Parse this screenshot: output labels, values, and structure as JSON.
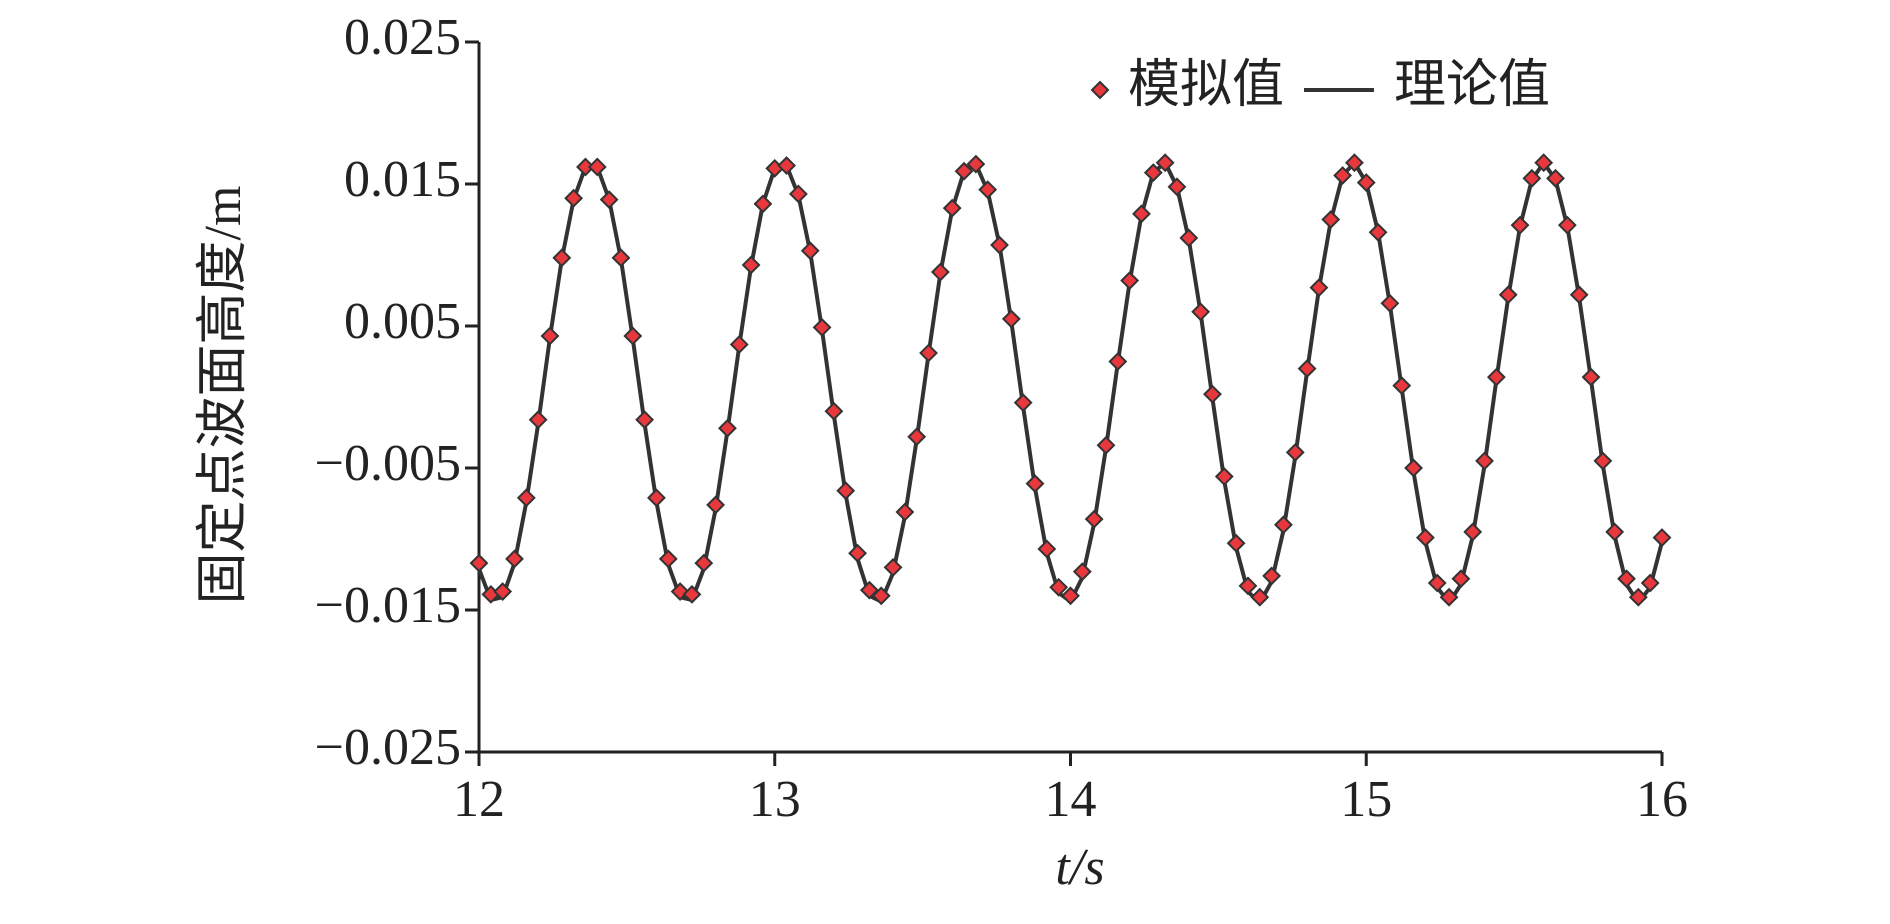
{
  "chart_data": {
    "type": "scatter",
    "x_label": "t/s",
    "y_label": "固定点波面高度/m",
    "xlim": [
      12,
      16
    ],
    "xticks": [
      12,
      13,
      14,
      15,
      16
    ],
    "ylim": [
      -0.025,
      0.025
    ],
    "yticks": [
      {
        "value": -0.025,
        "label": "−0.025"
      },
      {
        "value": -0.015,
        "label": "−0.015"
      },
      {
        "value": -0.005,
        "label": "−0.005"
      },
      0.005,
      0.015,
      0.025
    ],
    "legend": "top-right",
    "x": [
      12,
      12.04,
      12.08,
      12.12,
      12.16,
      12.2,
      12.24,
      12.28,
      12.32,
      12.36,
      12.4,
      12.44,
      12.48,
      12.52,
      12.56,
      12.6,
      12.64,
      12.68,
      12.72,
      12.76,
      12.8,
      12.84,
      12.88,
      12.92,
      12.96,
      13,
      13.04,
      13.08,
      13.12,
      13.16,
      13.2,
      13.24,
      13.28,
      13.32,
      13.36,
      13.4,
      13.44,
      13.48,
      13.52,
      13.56,
      13.6,
      13.64,
      13.68,
      13.72,
      13.76,
      13.8,
      13.84,
      13.88,
      13.92,
      13.96,
      14,
      14.04,
      14.08,
      14.12,
      14.16,
      14.2,
      14.24,
      14.28,
      14.32,
      14.36,
      14.4,
      14.44,
      14.48,
      14.52,
      14.56,
      14.6,
      14.64,
      14.68,
      14.72,
      14.76,
      14.8,
      14.84,
      14.88,
      14.92,
      14.96,
      15,
      15.04,
      15.08,
      15.12,
      15.16,
      15.2,
      15.24,
      15.28,
      15.32,
      15.36,
      15.4,
      15.44,
      15.48,
      15.52,
      15.56,
      15.6,
      15.64,
      15.68,
      15.72,
      15.76,
      15.8,
      15.84,
      15.88,
      15.92,
      15.96,
      16
    ],
    "series": [
      {
        "name": "理论值",
        "mode": "line",
        "color": "#333333",
        "values": [
          -0.0121,
          -0.0143,
          -0.0141,
          -0.0117,
          -0.0074,
          -0.0019,
          0.0042,
          0.0097,
          0.0139,
          0.0162,
          0.0162,
          0.0139,
          0.0097,
          0.0041,
          -0.0019,
          -0.0074,
          -0.0118,
          -0.0141,
          -0.0143,
          -0.0121,
          -0.0079,
          -0.0024,
          0.0036,
          0.0092,
          0.0136,
          0.0161,
          0.0163,
          0.0142,
          0.0102,
          0.0047,
          -0.0013,
          -0.0069,
          -0.0114,
          -0.014,
          -0.0144,
          -0.0124,
          -0.0084,
          -0.003,
          0.003,
          0.0087,
          0.0132,
          0.0159,
          0.0164,
          0.0145,
          0.0107,
          0.0053,
          -0.0007,
          -0.0064,
          -0.011,
          -0.0138,
          -0.0144,
          -0.0127,
          -0.0089,
          -0.0036,
          0.0024,
          0.0081,
          0.0128,
          0.0158,
          0.0165,
          0.0148,
          0.0111,
          0.0059,
          -0.0001,
          -0.0059,
          -0.0106,
          -0.0137,
          -0.0145,
          -0.013,
          -0.0094,
          -0.0042,
          0.0018,
          0.0076,
          0.0124,
          0.0156,
          0.0165,
          0.0151,
          0.0116,
          0.0065,
          0.0006,
          -0.0053,
          -0.0102,
          -0.0134,
          -0.0145,
          -0.0132,
          -0.0098,
          -0.0048,
          0.0012,
          0.007,
          0.012,
          0.0153,
          0.0165,
          0.0153,
          0.012,
          0.007,
          0.0012,
          -0.0048,
          -0.0098,
          -0.0132,
          -0.0145,
          -0.0134,
          -0.0102
        ]
      },
      {
        "name": "模拟值",
        "mode": "markers",
        "color": "#e8383d",
        "values": [
          -0.0117,
          -0.0139,
          -0.0137,
          -0.0114,
          -0.0071,
          -0.0016,
          0.0043,
          0.0098,
          0.014,
          0.0162,
          0.0162,
          0.0139,
          0.0098,
          0.0043,
          -0.0016,
          -0.0071,
          -0.0114,
          -0.0137,
          -0.0139,
          -0.0117,
          -0.0076,
          -0.0022,
          0.0037,
          0.0093,
          0.0136,
          0.0161,
          0.0163,
          0.0143,
          0.0103,
          0.0049,
          -0.001,
          -0.0066,
          -0.011,
          -0.0136,
          -0.014,
          -0.012,
          -0.0081,
          -0.0028,
          0.0031,
          0.0088,
          0.0133,
          0.0159,
          0.0164,
          0.0146,
          0.0107,
          0.0055,
          -0.0004,
          -0.0061,
          -0.0107,
          -0.0134,
          -0.014,
          -0.0123,
          -0.0086,
          -0.0034,
          0.0025,
          0.0082,
          0.0129,
          0.0158,
          0.0165,
          0.0148,
          0.0112,
          0.006,
          0.0002,
          -0.0056,
          -0.0103,
          -0.0133,
          -0.0141,
          -0.0126,
          -0.009,
          -0.0039,
          0.002,
          0.0077,
          0.0125,
          0.0156,
          0.0165,
          0.0151,
          0.0116,
          0.0066,
          0.0008,
          -0.005,
          -0.0099,
          -0.0131,
          -0.0141,
          -0.0128,
          -0.0095,
          -0.0045,
          0.0014,
          0.0072,
          0.0121,
          0.0154,
          0.0165,
          0.0154,
          0.0121,
          0.0072,
          0.0014,
          -0.0045,
          -0.0095,
          -0.0128,
          -0.0141,
          -0.0131,
          -0.0099
        ]
      }
    ]
  }
}
